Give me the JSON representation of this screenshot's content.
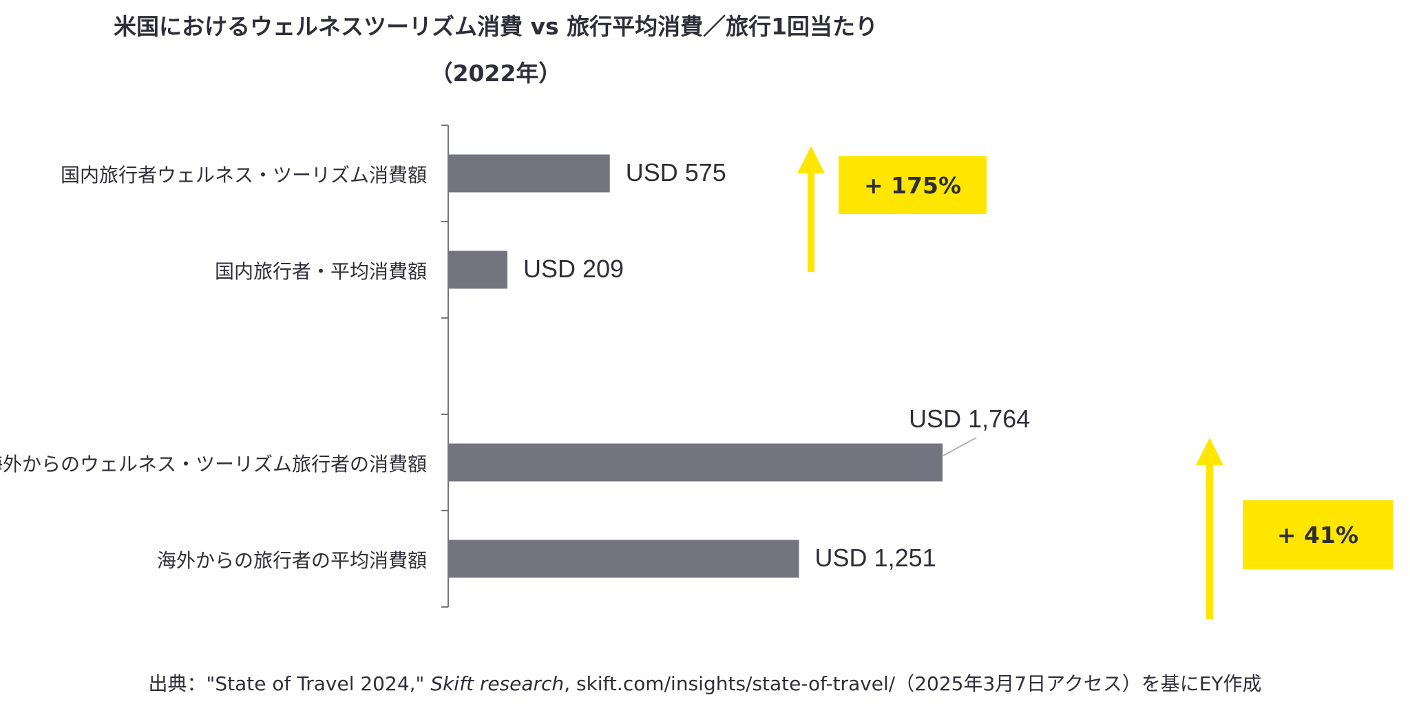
{
  "chart_data": {
    "type": "bar",
    "orientation": "horizontal",
    "title": "米国におけるウェルネスツーリズム消費 vs 旅行平均消費／旅行1回当たり",
    "subtitle": "（2022年）",
    "categories": [
      "国内旅行者ウェルネス・ツーリズム消費額",
      "国内旅行者・平均消費額",
      "海外からのウェルネス・ツーリズム旅行者の消費額",
      "海外からの旅行者の平均消費額"
    ],
    "values": [
      575,
      209,
      1764,
      1251
    ],
    "value_labels": [
      "USD 575",
      "USD 209",
      "USD 1,764",
      "USD 1,251"
    ],
    "bar_color": "#747480",
    "accent_color": "#ffe600",
    "annotations": [
      {
        "text": "+ 175%",
        "from_category": 1,
        "to_category": 0
      },
      {
        "text": "+ 41%",
        "from_category": 3,
        "to_category": 2
      }
    ],
    "grid": false,
    "legend": "none"
  },
  "source": {
    "prefix": "出典：\"State of Travel 2024,\" ",
    "italic": "Skift research",
    "suffix": ", skift.com/insights/state-of-travel/（2025年3月7日アクセス）を基にEY作成"
  }
}
